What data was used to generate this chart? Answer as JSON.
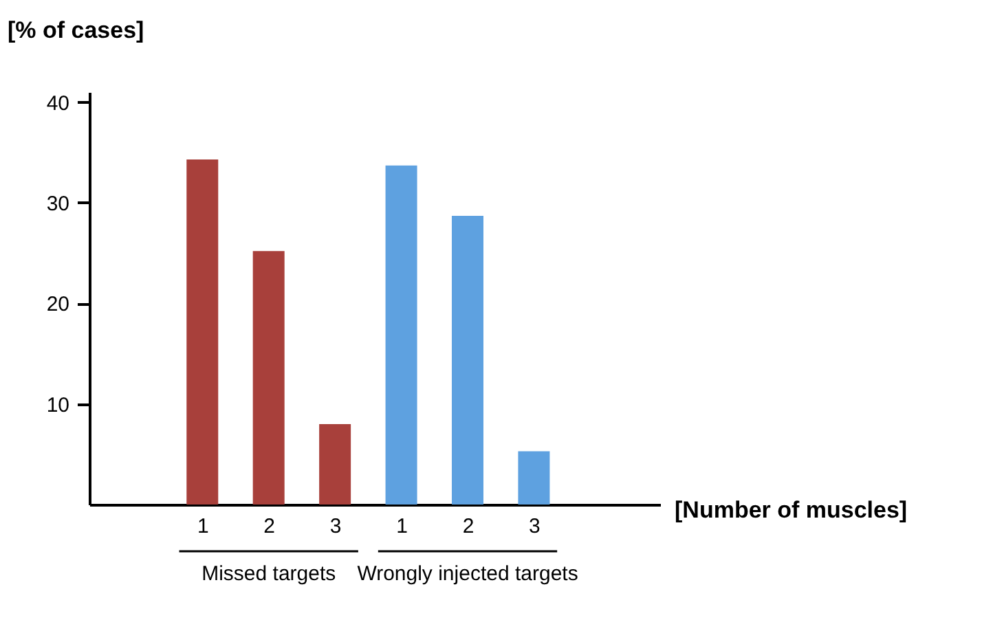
{
  "chart_data": {
    "type": "bar",
    "ylabel": "[% of cases]",
    "xlabel": "[Number of muscles]",
    "categories": [
      "1",
      "2",
      "3",
      "1",
      "2",
      "3"
    ],
    "values": [
      34.3,
      25.2,
      8.0,
      33.7,
      28.7,
      5.3
    ],
    "colors": [
      "#a8403b",
      "#a8403b",
      "#a8403b",
      "#5ea1e0",
      "#5ea1e0",
      "#5ea1e0"
    ],
    "ylim": [
      0,
      41
    ],
    "yticks": [
      10,
      20,
      30,
      40
    ],
    "grid": false,
    "annotations": [
      "Missed targets",
      "Wrongly injected targets"
    ]
  }
}
